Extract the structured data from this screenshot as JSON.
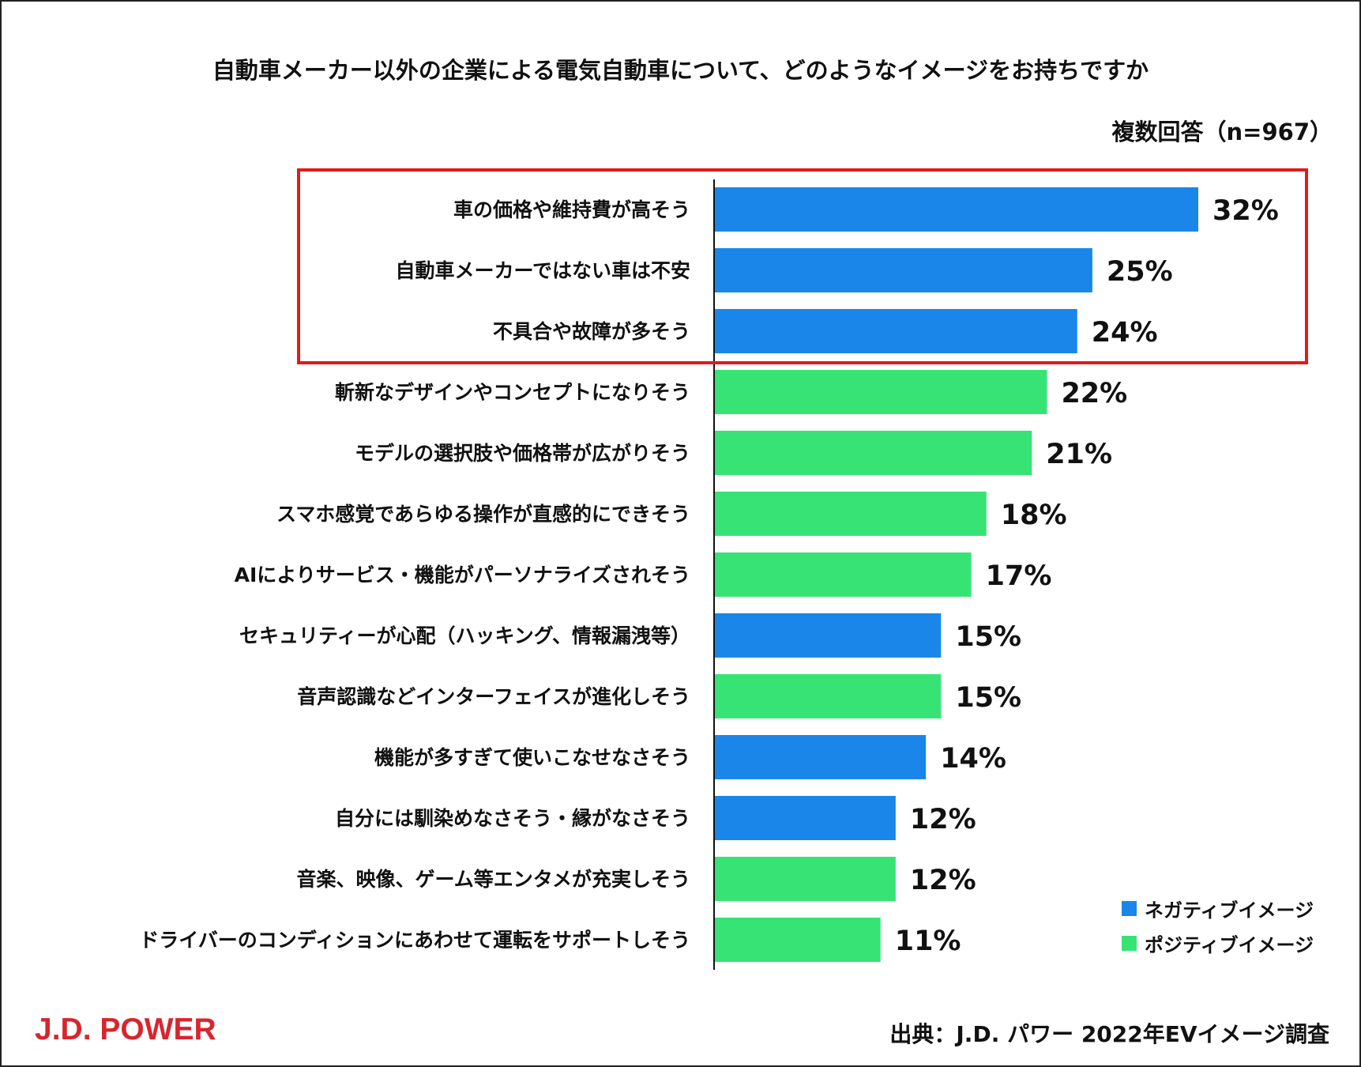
{
  "header": {
    "title": "自動車メーカー以外の企業による電気自動車について、どのようなイメージをお持ちですか",
    "subtitle": "複数回答（n=967）"
  },
  "chart_data": {
    "type": "bar",
    "orientation": "horizontal",
    "title": "自動車メーカー以外の企業による電気自動車について、どのようなイメージをお持ちですか",
    "note": "複数回答（n=967）",
    "value_suffix": "%",
    "xlim": [
      0,
      32
    ],
    "categories": [
      "車の価格や維持費が高そう",
      "自動車メーカーではない車は不安",
      "不具合や故障が多そう",
      "斬新なデザインやコンセプトになりそう",
      "モデルの選択肢や価格帯が広がりそう",
      "スマホ感覚であらゆる操作が直感的にできそう",
      "AIによりサービス・機能がパーソナライズされそう",
      "セキュリティーが心配（ハッキング、情報漏洩等）",
      "音声認識などインターフェイスが進化しそう",
      "機能が多すぎて使いこなせなさそう",
      "自分には馴染めなさそう・縁がなさそう",
      "音楽、映像、ゲーム等エンタメが充実しそう",
      "ドライバーのコンディションにあわせて運転をサポートしそう"
    ],
    "values": [
      32,
      25,
      24,
      22,
      21,
      18,
      17,
      15,
      15,
      14,
      12,
      12,
      11
    ],
    "value_labels": [
      "32%",
      "25%",
      "24%",
      "22%",
      "21%",
      "18%",
      "17%",
      "15%",
      "15%",
      "14%",
      "12%",
      "12%",
      "11%"
    ],
    "series_type": [
      "negative",
      "negative",
      "negative",
      "positive",
      "positive",
      "positive",
      "positive",
      "negative",
      "positive",
      "negative",
      "negative",
      "positive",
      "positive"
    ],
    "highlight_first_n": 3,
    "colors": {
      "negative": "#1a86ea",
      "positive": "#38e376",
      "highlight": "#e01b1b",
      "axis": "#111111"
    },
    "legend": [
      {
        "key": "negative",
        "label": "ネガティブイメージ"
      },
      {
        "key": "positive",
        "label": "ポジティブイメージ"
      }
    ],
    "legend_position": "bottom-right"
  },
  "footer": {
    "logo": "J.D. POWER",
    "logo_color": "#d7262e",
    "source": "出典：J.D. パワー 2022年EVイメージ調査"
  }
}
